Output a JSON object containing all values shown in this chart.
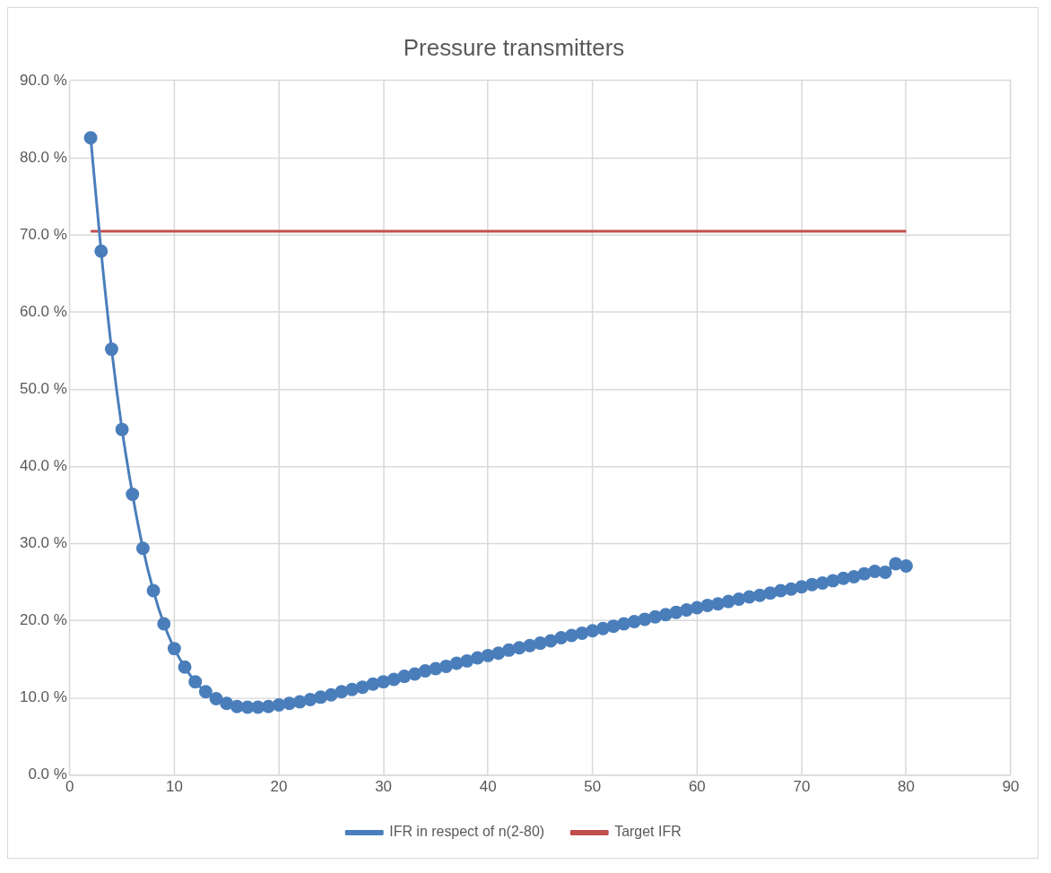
{
  "chart_data": {
    "type": "line",
    "title": "Pressure transmitters",
    "xlim": [
      0,
      90
    ],
    "xticks": [
      0,
      10,
      20,
      30,
      40,
      50,
      60,
      70,
      80,
      90
    ],
    "ylim": [
      0,
      90
    ],
    "yticks": [
      {
        "value": 0,
        "label": "0.0 %"
      },
      {
        "value": 10,
        "label": "10.0 %"
      },
      {
        "value": 20,
        "label": "20.0 %"
      },
      {
        "value": 30,
        "label": "30.0 %"
      },
      {
        "value": 40,
        "label": "40.0 %"
      },
      {
        "value": 50,
        "label": "50.0 %"
      },
      {
        "value": 60,
        "label": "60.0 %"
      },
      {
        "value": 70,
        "label": "70.0 %"
      },
      {
        "value": 80,
        "label": "80.0 %"
      },
      {
        "value": 90,
        "label": "90.0 %"
      }
    ],
    "grid": true,
    "legend": "bottom",
    "series": [
      {
        "name": "IFR in respect of n(2-80)",
        "color": "#4a7ebb",
        "marker": "circle",
        "x": [
          2,
          3,
          4,
          5,
          6,
          7,
          8,
          9,
          10,
          11,
          12,
          13,
          14,
          15,
          16,
          17,
          18,
          19,
          20,
          21,
          22,
          23,
          24,
          25,
          26,
          27,
          28,
          29,
          30,
          31,
          32,
          33,
          34,
          35,
          36,
          37,
          38,
          39,
          40,
          41,
          42,
          43,
          44,
          45,
          46,
          47,
          48,
          49,
          50,
          51,
          52,
          53,
          54,
          55,
          56,
          57,
          58,
          59,
          60,
          61,
          62,
          63,
          64,
          65,
          66,
          67,
          68,
          69,
          70,
          71,
          72,
          73,
          74,
          75,
          76,
          77,
          78,
          79,
          80
        ],
        "values": [
          82.6,
          67.9,
          55.2,
          44.8,
          36.4,
          29.4,
          23.9,
          19.6,
          16.4,
          14.0,
          12.1,
          10.8,
          9.9,
          9.3,
          8.9,
          8.8,
          8.8,
          8.9,
          9.1,
          9.3,
          9.5,
          9.8,
          10.1,
          10.4,
          10.8,
          11.1,
          11.4,
          11.8,
          12.1,
          12.4,
          12.8,
          13.1,
          13.5,
          13.8,
          14.1,
          14.5,
          14.8,
          15.2,
          15.5,
          15.8,
          16.2,
          16.5,
          16.8,
          17.1,
          17.4,
          17.8,
          18.1,
          18.4,
          18.7,
          19.0,
          19.3,
          19.6,
          19.9,
          20.2,
          20.5,
          20.8,
          21.1,
          21.4,
          21.7,
          22.0,
          22.2,
          22.5,
          22.8,
          23.1,
          23.3,
          23.6,
          23.9,
          24.1,
          24.4,
          24.7,
          24.9,
          25.2,
          25.5,
          25.7,
          26.1,
          26.4,
          26.3,
          27.4,
          27.1
        ]
      },
      {
        "name": "Target IFR",
        "color": "#c0504d",
        "marker": "none",
        "x": [
          2,
          80
        ],
        "values": [
          70.5,
          70.5
        ]
      }
    ]
  }
}
